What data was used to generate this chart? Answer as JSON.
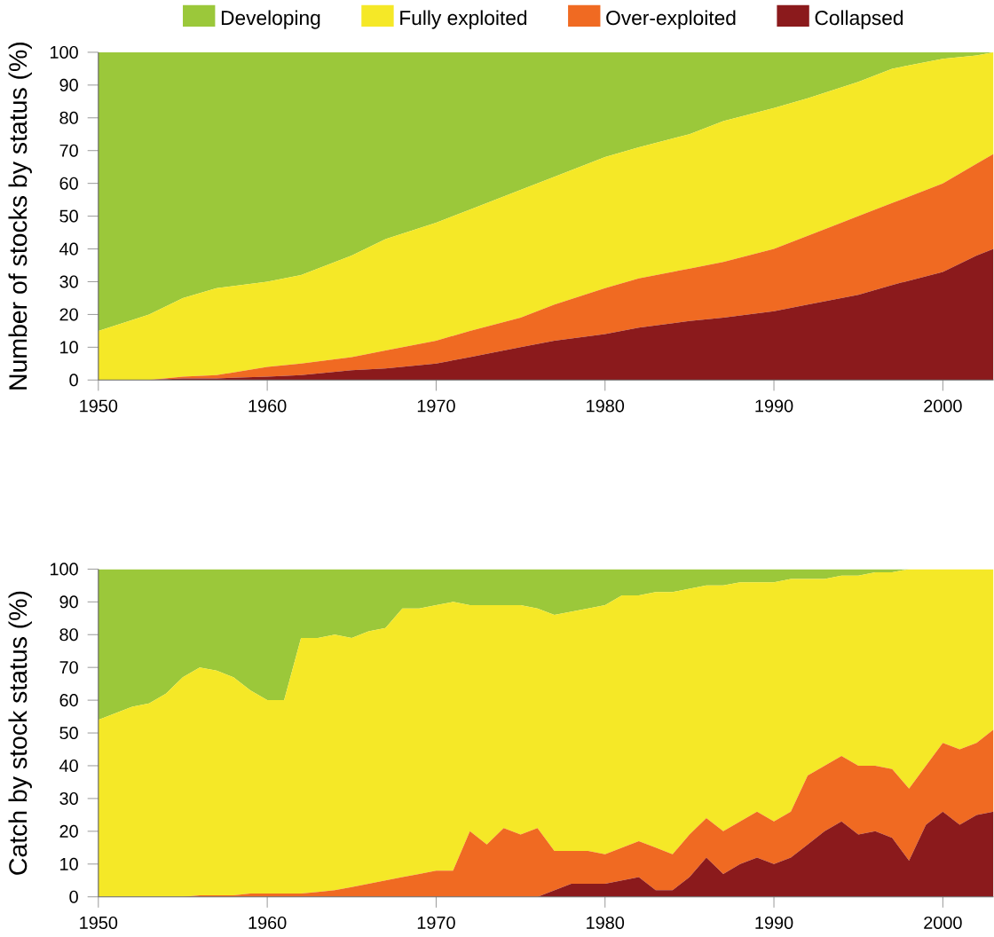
{
  "chart_data": [
    {
      "type": "area",
      "stacked": true,
      "ylabel": "Number of stocks by status (%)",
      "legend": "top",
      "x": [
        1950,
        1953,
        1955,
        1957,
        1960,
        1962,
        1965,
        1967,
        1970,
        1972,
        1975,
        1977,
        1980,
        1982,
        1985,
        1987,
        1990,
        1992,
        1995,
        1997,
        2000,
        2002,
        2003
      ],
      "series": [
        {
          "name": "Collapsed",
          "color": "#8b1a1c",
          "values": [
            0,
            0,
            0.5,
            0.5,
            1,
            1.5,
            3,
            3.5,
            5,
            7,
            10,
            12,
            14,
            16,
            18,
            19,
            21,
            23,
            26,
            29,
            33,
            38,
            40
          ]
        },
        {
          "name": "Over-exploited",
          "color": "#f06a22",
          "values": [
            0,
            0,
            0.5,
            1,
            3,
            3.5,
            4,
            5.5,
            7,
            8,
            9,
            11,
            14,
            15,
            16,
            17,
            19,
            21,
            24,
            25,
            27,
            28,
            29
          ]
        },
        {
          "name": "Fully exploited",
          "color": "#f5e827",
          "values": [
            15,
            20,
            24,
            26.5,
            26,
            27,
            31,
            34,
            36,
            37,
            39,
            39,
            40,
            40,
            41,
            43,
            43,
            42,
            41,
            41,
            38,
            33,
            31
          ]
        },
        {
          "name": "Developing",
          "color": "#9bc83a",
          "values": [
            85,
            80,
            75,
            72,
            70,
            68,
            62,
            57,
            52,
            48,
            42,
            38,
            32,
            29,
            25,
            21,
            17,
            14,
            9,
            5,
            2,
            1,
            0
          ]
        }
      ],
      "xlim": [
        1950,
        2003
      ],
      "ylim": [
        0,
        100
      ],
      "xticks": [
        1950,
        1960,
        1970,
        1980,
        1990,
        2000
      ],
      "yticks": [
        0,
        10,
        20,
        30,
        40,
        50,
        60,
        70,
        80,
        90,
        100
      ]
    },
    {
      "type": "area",
      "stacked": true,
      "ylabel": "Catch by stock status (%)",
      "x": [
        1950,
        1951,
        1952,
        1953,
        1954,
        1955,
        1956,
        1957,
        1958,
        1959,
        1960,
        1961,
        1962,
        1963,
        1964,
        1965,
        1966,
        1967,
        1968,
        1969,
        1970,
        1971,
        1972,
        1973,
        1974,
        1975,
        1976,
        1977,
        1978,
        1979,
        1980,
        1981,
        1982,
        1983,
        1984,
        1985,
        1986,
        1987,
        1988,
        1989,
        1990,
        1991,
        1992,
        1993,
        1994,
        1995,
        1996,
        1997,
        1998,
        1999,
        2000,
        2001,
        2002,
        2003
      ],
      "series": [
        {
          "color": "#8b1a1c",
          "values": [
            0,
            0,
            0,
            0,
            0,
            0,
            0,
            0,
            0,
            0,
            0,
            0,
            0,
            0,
            0,
            0,
            0,
            0,
            0,
            0,
            0,
            0,
            0,
            0,
            0,
            0,
            0,
            2,
            4,
            4,
            4,
            5,
            6,
            2,
            2,
            6,
            12,
            7,
            10,
            12,
            10,
            12,
            16,
            20,
            23,
            19,
            20,
            18,
            11,
            22,
            26,
            22,
            25,
            26
          ]
        },
        {
          "color": "#f06a22",
          "values": [
            0,
            0,
            0,
            0,
            0,
            0,
            0.5,
            0.5,
            0.5,
            1,
            1,
            1,
            1,
            1.5,
            2,
            3,
            4,
            5,
            6,
            7,
            8,
            8,
            20,
            16,
            21,
            19,
            21,
            12,
            10,
            10,
            9,
            10,
            11,
            13,
            11,
            13,
            12,
            13,
            13,
            14,
            13,
            14,
            21,
            20,
            20,
            21,
            20,
            21,
            22,
            18,
            21,
            23,
            22,
            25
          ]
        },
        {
          "color": "#f5e827",
          "values": [
            54,
            56,
            58,
            59,
            62,
            67,
            69.5,
            68.5,
            66.5,
            62,
            59,
            59,
            78,
            77.5,
            78,
            76,
            77,
            77,
            82,
            81,
            81,
            82,
            69,
            73,
            68,
            70,
            67,
            72,
            73,
            74,
            76,
            77,
            75,
            78,
            80,
            75,
            71,
            75,
            73,
            70,
            73,
            71,
            60,
            57,
            55,
            58,
            59,
            60,
            67,
            60,
            53,
            55,
            53,
            49
          ]
        },
        {
          "color": "#9bc83a",
          "values": [
            46,
            44,
            42,
            41,
            38,
            33,
            30,
            31,
            33,
            37,
            40,
            40,
            21,
            21,
            20,
            21,
            19,
            18,
            12,
            12,
            11,
            10,
            11,
            11,
            11,
            11,
            12,
            14,
            13,
            12,
            11,
            8,
            8,
            7,
            7,
            6,
            5,
            5,
            4,
            4,
            4,
            3,
            3,
            3,
            2,
            2,
            1,
            1,
            0,
            0,
            0,
            0,
            0,
            0
          ]
        }
      ],
      "xlim": [
        1950,
        2003
      ],
      "ylim": [
        0,
        100
      ],
      "xticks": [
        1950,
        1960,
        1970,
        1980,
        1990,
        2000
      ],
      "yticks": [
        0,
        10,
        20,
        30,
        40,
        50,
        60,
        70,
        80,
        90,
        100
      ]
    }
  ]
}
